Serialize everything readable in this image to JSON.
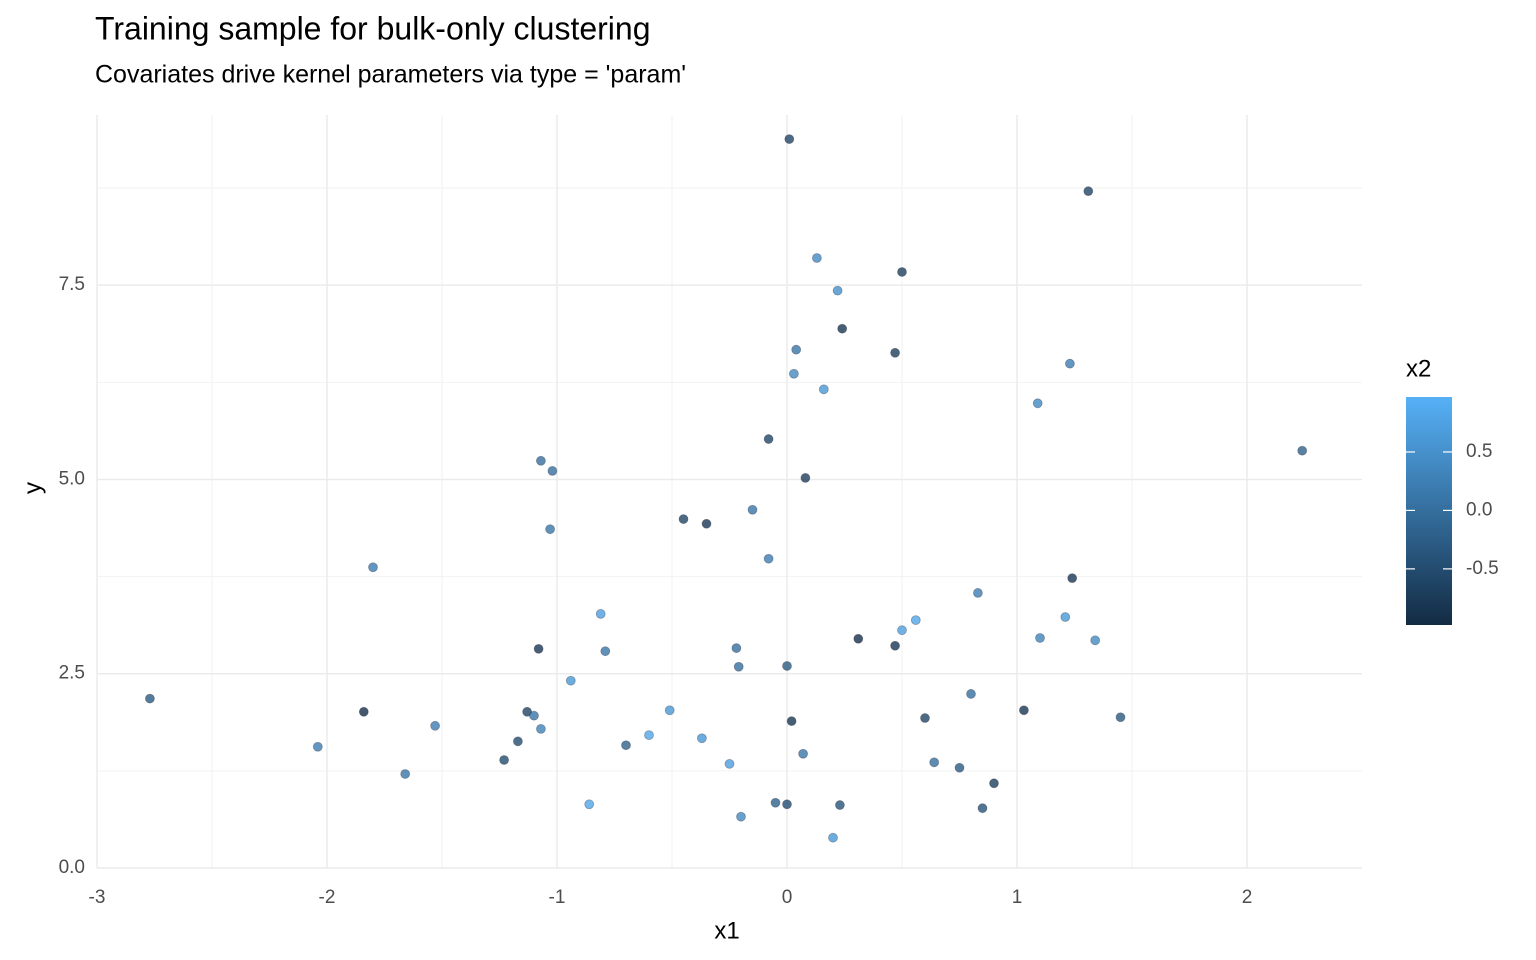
{
  "chart_data": {
    "type": "scatter",
    "title": "Training sample for bulk-only clustering",
    "subtitle": "Covariates drive kernel parameters via type = 'param'",
    "xlabel": "x1",
    "ylabel": "y",
    "x": [
      0.01,
      1.31,
      0.13,
      0.5,
      0.22,
      0.24,
      0.04,
      0.47,
      1.23,
      0.03,
      0.16,
      1.09,
      -0.08,
      2.24,
      -1.07,
      -1.02,
      0.08,
      -0.15,
      -0.45,
      -0.35,
      -1.03,
      -0.08,
      -1.8,
      1.24,
      0.83,
      -0.81,
      1.21,
      0.56,
      0.5,
      1.1,
      0.31,
      1.34,
      0.47,
      -1.08,
      -0.22,
      -0.79,
      0.0,
      -0.21,
      -0.94,
      -2.77,
      0.8,
      -1.84,
      -0.51,
      -1.13,
      1.03,
      -1.1,
      1.45,
      0.6,
      0.02,
      -1.53,
      -1.07,
      -0.6,
      -0.37,
      -1.17,
      -2.04,
      -0.7,
      0.07,
      -1.23,
      0.64,
      -0.25,
      0.75,
      -1.66,
      0.9,
      -0.86,
      -0.05,
      0.0,
      0.23,
      0.85,
      -0.2,
      0.2
    ],
    "y": [
      9.38,
      8.71,
      7.85,
      7.67,
      7.43,
      6.94,
      6.67,
      6.63,
      6.49,
      6.36,
      6.16,
      5.98,
      5.52,
      5.37,
      5.24,
      5.11,
      5.02,
      4.61,
      4.49,
      4.43,
      4.36,
      3.98,
      3.87,
      3.73,
      3.54,
      3.27,
      3.23,
      3.19,
      3.06,
      2.96,
      2.95,
      2.93,
      2.86,
      2.82,
      2.83,
      2.79,
      2.6,
      2.59,
      2.41,
      2.18,
      2.24,
      2.01,
      2.03,
      2.01,
      2.03,
      1.96,
      1.94,
      1.93,
      1.89,
      1.83,
      1.79,
      1.71,
      1.67,
      1.63,
      1.56,
      1.58,
      1.47,
      1.39,
      1.36,
      1.34,
      1.29,
      1.21,
      1.09,
      0.82,
      0.84,
      0.82,
      0.81,
      0.77,
      0.66,
      0.39
    ],
    "color_values": [
      -0.6,
      -0.6,
      0.4,
      -0.7,
      0.5,
      -0.8,
      0.1,
      -0.7,
      0.2,
      0.4,
      0.6,
      0.4,
      -0.6,
      -0.2,
      0.0,
      0.0,
      -0.7,
      0.1,
      -0.6,
      -0.8,
      0.1,
      0.2,
      0.2,
      -0.8,
      0.2,
      0.7,
      0.6,
      0.8,
      0.7,
      0.3,
      -0.9,
      0.4,
      -0.8,
      -0.8,
      0.0,
      0.1,
      -0.3,
      0.0,
      0.6,
      -0.3,
      0.0,
      -0.9,
      0.6,
      -0.6,
      -0.8,
      0.1,
      -0.3,
      -0.6,
      -0.8,
      0.2,
      0.3,
      0.8,
      0.6,
      -0.5,
      0.2,
      -0.2,
      0.1,
      -0.5,
      0.0,
      0.7,
      -0.3,
      0.1,
      -0.7,
      0.8,
      -0.2,
      -0.5,
      -0.4,
      -0.4,
      0.4,
      0.6
    ],
    "colorbar": {
      "title": "x2",
      "low_color": "#132B43",
      "high_color": "#56B1F7",
      "lim": [
        -0.98,
        0.97
      ],
      "ticks": [
        -0.5,
        {
          "value": 0,
          "label": "0.0"
        },
        0.5
      ]
    },
    "xlim": [
      -3.0,
      2.5
    ],
    "xticks": [
      -3,
      -2,
      -1,
      0,
      1,
      2
    ],
    "ylim": [
      0,
      9.69
    ],
    "yticks": [
      {
        "value": 0,
        "label": "0.0"
      },
      2.5,
      {
        "value": 5,
        "label": "5.0"
      },
      7.5
    ],
    "grid": true
  }
}
